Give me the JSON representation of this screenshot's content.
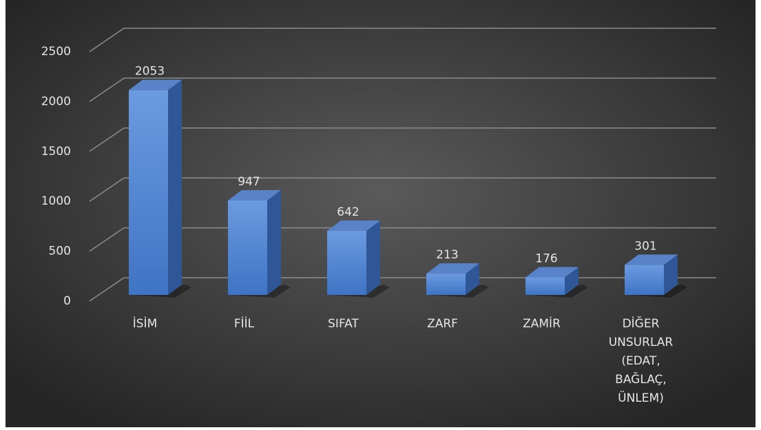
{
  "chart_data": {
    "type": "bar3d",
    "categories": [
      "İSİM",
      "FİİL",
      "SIFAT",
      "ZARF",
      "ZAMİR",
      "DİĞER UNSURLAR (EDAT, BAĞLAÇ, ÜNLEM)"
    ],
    "values": [
      2053,
      947,
      642,
      213,
      176,
      301
    ],
    "color": "#4a7fcf",
    "ylim": [
      0,
      2500
    ],
    "yticks": [
      0,
      500,
      1000,
      1500,
      2000,
      2500
    ],
    "grid": true
  }
}
